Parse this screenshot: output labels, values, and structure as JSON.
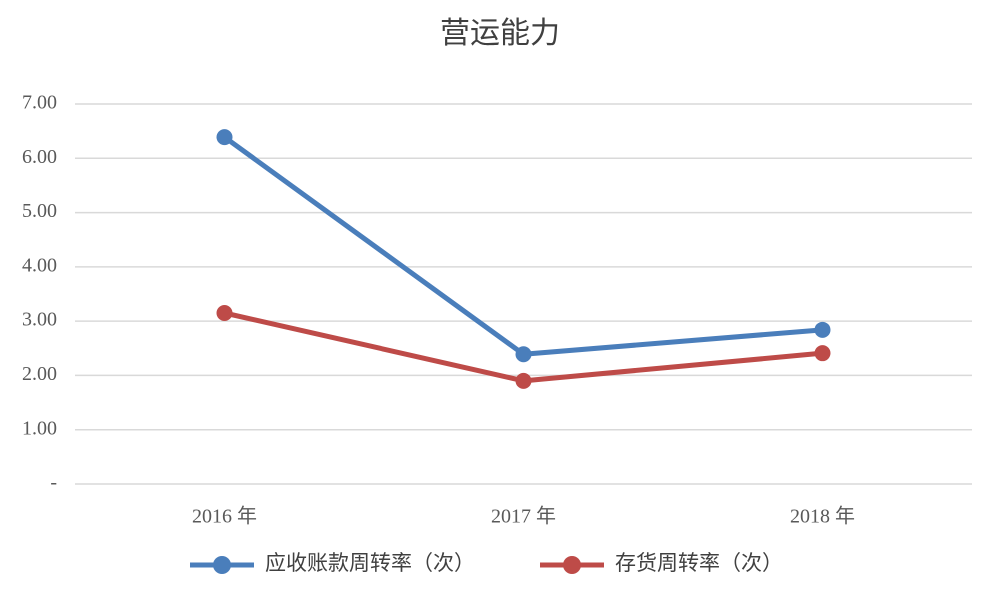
{
  "chart_data": {
    "type": "line",
    "title": "营运能力",
    "categories": [
      "2016 年",
      "2017 年",
      "2018 年"
    ],
    "series": [
      {
        "name": "应收账款周转率（次）",
        "color": "#4a7ebb",
        "values": [
          6.39,
          2.39,
          2.84
        ]
      },
      {
        "name": "存货周转率（次）",
        "color": "#be4b48",
        "values": [
          3.15,
          1.9,
          2.41
        ]
      }
    ],
    "ylim": [
      0,
      7
    ],
    "yticks": [
      {
        "value": 0,
        "label": "-"
      },
      {
        "value": 1,
        "label": "1.00"
      },
      {
        "value": 2,
        "label": "2.00"
      },
      {
        "value": 3,
        "label": "3.00"
      },
      {
        "value": 4,
        "label": "4.00"
      },
      {
        "value": 5,
        "label": "5.00"
      },
      {
        "value": 6,
        "label": "6.00"
      },
      {
        "value": 7,
        "label": "7.00"
      }
    ],
    "grid": true
  }
}
